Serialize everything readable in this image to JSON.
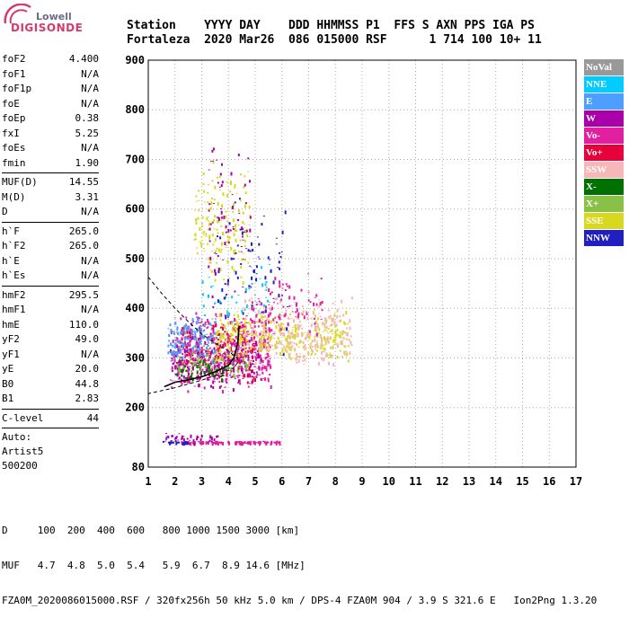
{
  "logo": {
    "line1": "Lowell",
    "line2": "DIGISONDE"
  },
  "header": {
    "line1": "Station    YYYY DAY    DDD HHMMSS P1  FFS S AXN PPS IGA PS",
    "line2": "Fortaleza  2020 Mar26  086 015000 RSF      1 714 100 10+ 11"
  },
  "params": [
    {
      "k": "foF2",
      "v": "4.400"
    },
    {
      "k": "foF1",
      "v": "N/A"
    },
    {
      "k": "foF1p",
      "v": "N/A"
    },
    {
      "k": "foE",
      "v": "N/A"
    },
    {
      "k": "foEp",
      "v": "0.38"
    },
    {
      "k": "fxI",
      "v": "5.25"
    },
    {
      "k": "foEs",
      "v": "N/A"
    },
    {
      "k": "fmin",
      "v": "1.90"
    },
    {
      "sep": true
    },
    {
      "k": "MUF(D)",
      "v": "14.55"
    },
    {
      "k": "M(D)",
      "v": "3.31"
    },
    {
      "k": "D",
      "v": "N/A"
    },
    {
      "sep": true
    },
    {
      "k": "h`F",
      "v": "265.0"
    },
    {
      "k": "h`F2",
      "v": "265.0"
    },
    {
      "k": "h`E",
      "v": "N/A"
    },
    {
      "k": "h`Es",
      "v": "N/A"
    },
    {
      "sep": true
    },
    {
      "k": "hmF2",
      "v": "295.5"
    },
    {
      "k": "hmF1",
      "v": "N/A"
    },
    {
      "k": "hmE",
      "v": "110.0"
    },
    {
      "k": "yF2",
      "v": "49.0"
    },
    {
      "k": "yF1",
      "v": "N/A"
    },
    {
      "k": "yE",
      "v": "20.0"
    },
    {
      "k": "B0",
      "v": "44.8"
    },
    {
      "k": "B1",
      "v": "2.83"
    },
    {
      "sep": true
    },
    {
      "k": "C-level",
      "v": "44"
    },
    {
      "sep": true
    }
  ],
  "autoscale": [
    "Auto:",
    "Artist5",
    "500200"
  ],
  "legend": [
    {
      "label": "NoVal",
      "color": "#999999"
    },
    {
      "label": "NNE",
      "color": "#00ccff"
    },
    {
      "label": "E",
      "color": "#4d9fff"
    },
    {
      "label": "W",
      "color": "#aa00aa"
    },
    {
      "label": "Vo-",
      "color": "#e020a0"
    },
    {
      "label": "Vo+",
      "color": "#e8003a"
    },
    {
      "label": "SSW",
      "color": "#f4b8b8"
    },
    {
      "label": "X-",
      "color": "#007000"
    },
    {
      "label": "X+",
      "color": "#88c048"
    },
    {
      "label": "SSE",
      "color": "#d8d820"
    },
    {
      "label": "NNW",
      "color": "#2020c0"
    }
  ],
  "footer": {
    "d_row": "D     100  200  400  600   800 1000 1500 3000 [km]",
    "muf_row": "MUF   4.7  4.8  5.0  5.4   5.9  6.7  8.9 14.6 [MHz]",
    "file_row": "FZA0M_2020086015000.RSF / 320fx256h 50 kHz 5.0 km / DPS-4 FZA0M 904 / 3.9 S 321.6 E   Ion2Png 1.3.20"
  },
  "chart_data": {
    "type": "scatter",
    "title": "",
    "xlabel": "",
    "ylabel": "",
    "xlim": [
      1,
      17
    ],
    "ylim": [
      80,
      900
    ],
    "xticks": [
      1,
      2,
      3,
      4,
      5,
      6,
      7,
      8,
      9,
      10,
      11,
      12,
      13,
      14,
      15,
      16,
      17
    ],
    "yticks": [
      80,
      200,
      300,
      400,
      500,
      600,
      700,
      800,
      900
    ],
    "grid": true,
    "trace_curve": [
      {
        "x": 1.6,
        "y": 242
      },
      {
        "x": 2.0,
        "y": 251
      },
      {
        "x": 2.5,
        "y": 256
      },
      {
        "x": 3.0,
        "y": 262
      },
      {
        "x": 3.5,
        "y": 272
      },
      {
        "x": 4.0,
        "y": 285
      },
      {
        "x": 4.2,
        "y": 300
      },
      {
        "x": 4.35,
        "y": 330
      },
      {
        "x": 4.4,
        "y": 365
      }
    ],
    "profile_curve": [
      {
        "x": 1.0,
        "y": 463
      },
      {
        "x": 1.5,
        "y": 430
      },
      {
        "x": 2.0,
        "y": 400
      },
      {
        "x": 2.5,
        "y": 373
      },
      {
        "x": 3.0,
        "y": 348
      },
      {
        "x": 3.5,
        "y": 330
      },
      {
        "x": 4.0,
        "y": 314
      },
      {
        "x": 4.4,
        "y": 295
      },
      {
        "x": 4.2,
        "y": 280
      },
      {
        "x": 3.8,
        "y": 270
      },
      {
        "x": 3.0,
        "y": 255
      },
      {
        "x": 2.0,
        "y": 240
      },
      {
        "x": 1.0,
        "y": 228
      }
    ],
    "echo_clusters": [
      {
        "series": "Vo-",
        "xmin": 1.8,
        "xmax": 5.6,
        "ymin": 230,
        "ymax": 400,
        "n": 520
      },
      {
        "series": "Vo+",
        "xmin": 2.2,
        "xmax": 5.0,
        "ymin": 240,
        "ymax": 380,
        "n": 180
      },
      {
        "series": "W",
        "xmin": 1.8,
        "xmax": 5.2,
        "ymin": 230,
        "ymax": 360,
        "n": 200
      },
      {
        "series": "E",
        "xmin": 1.7,
        "xmax": 3.5,
        "ymin": 290,
        "ymax": 390,
        "n": 140
      },
      {
        "series": "NNE",
        "xmin": 3.0,
        "xmax": 5.5,
        "ymin": 350,
        "ymax": 510,
        "n": 50
      },
      {
        "series": "X+",
        "xmin": 2.0,
        "xmax": 4.8,
        "ymin": 250,
        "ymax": 330,
        "n": 90
      },
      {
        "series": "X-",
        "xmin": 2.0,
        "xmax": 4.0,
        "ymin": 250,
        "ymax": 300,
        "n": 40
      },
      {
        "series": "SSE",
        "xmin": 3.5,
        "xmax": 8.5,
        "ymin": 290,
        "ymax": 400,
        "n": 340
      },
      {
        "series": "SSE",
        "xmin": 2.7,
        "xmax": 4.8,
        "ymin": 450,
        "ymax": 700,
        "n": 170
      },
      {
        "series": "SSW",
        "xmin": 4.5,
        "xmax": 8.6,
        "ymin": 270,
        "ymax": 430,
        "n": 260
      },
      {
        "series": "NNW",
        "xmin": 3.5,
        "xmax": 6.2,
        "ymin": 300,
        "ymax": 650,
        "n": 70
      },
      {
        "series": "W",
        "xmin": 3.2,
        "xmax": 4.8,
        "ymin": 400,
        "ymax": 750,
        "n": 70
      },
      {
        "series": "Vo-",
        "xmin": 4.8,
        "xmax": 7.5,
        "ymin": 330,
        "ymax": 480,
        "n": 90
      },
      {
        "series": "Vo-",
        "xmin": 2.2,
        "xmax": 5.9,
        "ymin": 129,
        "ymax": 134,
        "n": 110
      },
      {
        "series": "W",
        "xmin": 1.6,
        "xmax": 3.6,
        "ymin": 128,
        "ymax": 150,
        "n": 40
      },
      {
        "series": "NNW",
        "xmin": 1.5,
        "xmax": 2.5,
        "ymin": 129,
        "ymax": 133,
        "n": 20
      }
    ]
  }
}
